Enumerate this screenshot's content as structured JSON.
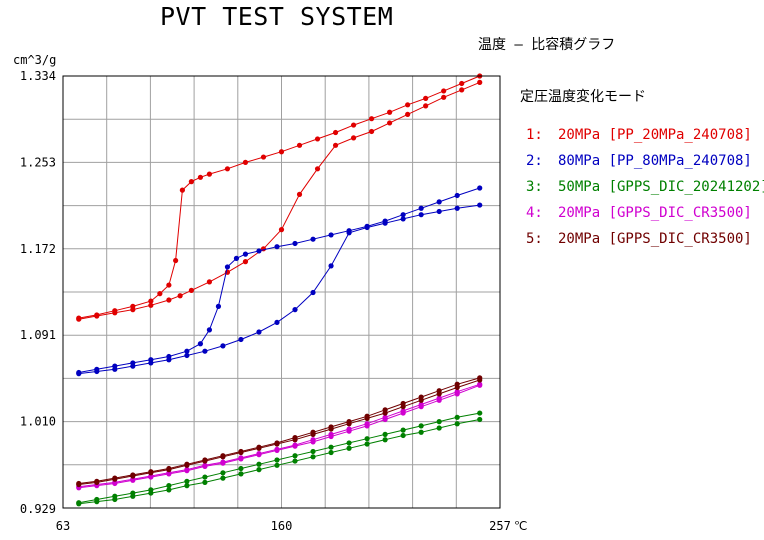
{
  "header": {
    "title": "PVT TEST SYSTEM",
    "subtitle": "温度 – 比容積グラフ",
    "mode": "定圧温度変化モード"
  },
  "chart_data": {
    "type": "line",
    "title": "PVT TEST SYSTEM",
    "subtitle": "温度 – 比容積グラフ",
    "ylabel": "cm^3/g",
    "xlabel": "",
    "x_unit": "℃",
    "xlim": [
      63,
      257
    ],
    "ylim": [
      0.929,
      1.334
    ],
    "x_ticks": [
      "63",
      "160",
      "257"
    ],
    "y_ticks": [
      "1.334",
      "1.253",
      "1.172",
      "1.091",
      "1.010",
      "0.929"
    ],
    "grid": true,
    "legend_position": "right",
    "series": [
      {
        "name": "20MPa [PP_20MPa_240708]",
        "index": "1:",
        "color": "#e00000",
        "x": [
          70,
          78,
          86,
          94,
          102,
          110,
          115,
          120,
          128,
          136,
          144,
          152,
          160,
          168,
          176,
          184,
          192,
          200,
          208,
          216,
          224,
          232,
          240,
          248
        ],
        "y": [
          1.106,
          1.109,
          1.112,
          1.115,
          1.119,
          1.124,
          1.128,
          1.133,
          1.141,
          1.15,
          1.16,
          1.172,
          1.19,
          1.223,
          1.247,
          1.269,
          1.276,
          1.282,
          1.29,
          1.298,
          1.306,
          1.314,
          1.321,
          1.328
        ],
        "x2": [
          70,
          78,
          86,
          94,
          102,
          106,
          110,
          113,
          116,
          120,
          124,
          128,
          136,
          144,
          152,
          160,
          168,
          176,
          184,
          192,
          200,
          208,
          216,
          224,
          232,
          240,
          248
        ],
        "y2": [
          1.107,
          1.11,
          1.114,
          1.118,
          1.123,
          1.13,
          1.138,
          1.161,
          1.227,
          1.235,
          1.239,
          1.242,
          1.247,
          1.253,
          1.258,
          1.263,
          1.269,
          1.275,
          1.281,
          1.288,
          1.294,
          1.3,
          1.307,
          1.313,
          1.32,
          1.327,
          1.334
        ]
      },
      {
        "name": "80MPa [PP_80MPa_240708]",
        "index": "2:",
        "color": "#0000c0",
        "x": [
          70,
          78,
          86,
          94,
          102,
          110,
          118,
          126,
          134,
          142,
          150,
          158,
          166,
          174,
          182,
          190,
          198,
          206,
          214,
          222,
          230,
          238,
          248
        ],
        "y": [
          1.055,
          1.057,
          1.059,
          1.062,
          1.065,
          1.068,
          1.072,
          1.076,
          1.081,
          1.087,
          1.094,
          1.103,
          1.115,
          1.131,
          1.156,
          1.187,
          1.192,
          1.196,
          1.2,
          1.204,
          1.207,
          1.21,
          1.213
        ],
        "x2": [
          70,
          78,
          86,
          94,
          102,
          110,
          118,
          124,
          128,
          132,
          136,
          140,
          144,
          150,
          158,
          166,
          174,
          182,
          190,
          198,
          206,
          214,
          222,
          230,
          238,
          248
        ],
        "y2": [
          1.056,
          1.059,
          1.062,
          1.065,
          1.068,
          1.071,
          1.076,
          1.083,
          1.096,
          1.118,
          1.155,
          1.163,
          1.167,
          1.17,
          1.174,
          1.177,
          1.181,
          1.185,
          1.189,
          1.193,
          1.198,
          1.204,
          1.21,
          1.216,
          1.222,
          1.229
        ]
      },
      {
        "name": "50MPa [GPPS_DIC_20241202]",
        "index": "3:",
        "color": "#008000",
        "x": [
          70,
          78,
          86,
          94,
          102,
          110,
          118,
          126,
          134,
          142,
          150,
          158,
          166,
          174,
          182,
          190,
          198,
          206,
          214,
          222,
          230,
          238,
          248
        ],
        "y": [
          0.933,
          0.935,
          0.937,
          0.94,
          0.943,
          0.946,
          0.95,
          0.953,
          0.957,
          0.961,
          0.965,
          0.969,
          0.973,
          0.977,
          0.981,
          0.985,
          0.989,
          0.993,
          0.997,
          1.0,
          1.004,
          1.008,
          1.012
        ],
        "x2": [
          70,
          78,
          86,
          94,
          102,
          110,
          118,
          126,
          134,
          142,
          150,
          158,
          166,
          174,
          182,
          190,
          198,
          206,
          214,
          222,
          230,
          238,
          248
        ],
        "y2": [
          0.934,
          0.937,
          0.94,
          0.943,
          0.946,
          0.95,
          0.954,
          0.958,
          0.962,
          0.966,
          0.97,
          0.974,
          0.978,
          0.982,
          0.986,
          0.99,
          0.994,
          0.998,
          1.002,
          1.006,
          1.01,
          1.014,
          1.018
        ]
      },
      {
        "name": "20MPa [GPPS_DIC_CR3500]",
        "index": "4:",
        "color": "#d000d0",
        "x": [
          70,
          78,
          86,
          94,
          102,
          110,
          118,
          126,
          134,
          142,
          150,
          158,
          166,
          174,
          182,
          190,
          198,
          206,
          214,
          222,
          230,
          238,
          248
        ],
        "y": [
          0.948,
          0.95,
          0.952,
          0.955,
          0.958,
          0.961,
          0.964,
          0.968,
          0.971,
          0.975,
          0.979,
          0.983,
          0.987,
          0.991,
          0.996,
          1.001,
          1.006,
          1.012,
          1.018,
          1.024,
          1.03,
          1.036,
          1.044
        ],
        "x2": [
          70,
          78,
          86,
          94,
          102,
          110,
          118,
          126,
          134,
          142,
          150,
          158,
          166,
          174,
          182,
          190,
          198,
          206,
          214,
          222,
          230,
          238,
          248
        ],
        "y2": [
          0.949,
          0.951,
          0.953,
          0.956,
          0.959,
          0.962,
          0.965,
          0.969,
          0.972,
          0.976,
          0.98,
          0.984,
          0.988,
          0.993,
          0.998,
          1.003,
          1.008,
          1.014,
          1.02,
          1.026,
          1.032,
          1.038,
          1.045
        ]
      },
      {
        "name": "20MPa [GPPS_DIC_CR3500]",
        "index": "5:",
        "color": "#700000",
        "x": [
          70,
          78,
          86,
          94,
          102,
          110,
          118,
          126,
          134,
          142,
          150,
          158,
          166,
          174,
          182,
          190,
          198,
          206,
          214,
          222,
          230,
          238,
          248
        ],
        "y": [
          0.951,
          0.953,
          0.956,
          0.959,
          0.962,
          0.965,
          0.969,
          0.973,
          0.977,
          0.981,
          0.985,
          0.989,
          0.993,
          0.998,
          1.003,
          1.008,
          1.013,
          1.018,
          1.024,
          1.03,
          1.036,
          1.042,
          1.049
        ],
        "x2": [
          70,
          78,
          86,
          94,
          102,
          110,
          118,
          126,
          134,
          142,
          150,
          158,
          166,
          174,
          182,
          190,
          198,
          206,
          214,
          222,
          230,
          238,
          248
        ],
        "y2": [
          0.952,
          0.954,
          0.957,
          0.96,
          0.963,
          0.966,
          0.97,
          0.974,
          0.978,
          0.982,
          0.986,
          0.99,
          0.995,
          1.0,
          1.005,
          1.01,
          1.015,
          1.021,
          1.027,
          1.033,
          1.039,
          1.045,
          1.051
        ]
      }
    ]
  }
}
